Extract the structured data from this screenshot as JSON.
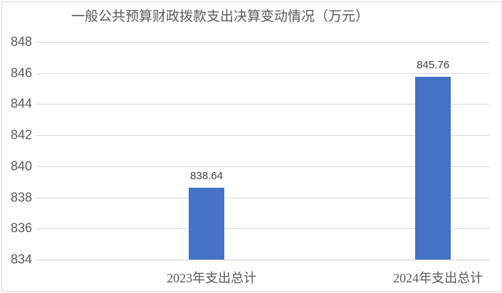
{
  "chart": {
    "title": "一般公共预算财政拨款支出决算变动情况（万元）"
  },
  "chart_data": {
    "type": "bar",
    "title": "一般公共预算财政拨款支出决算变动情况（万元）",
    "categories": [
      "2023年支出总计",
      "2024年支出总计"
    ],
    "values": [
      838.64,
      845.76
    ],
    "value_labels": [
      "838.64",
      "845.76"
    ],
    "xlabel": "",
    "ylabel": "",
    "ylim": [
      834,
      848
    ],
    "y_tick_step": 2,
    "y_ticks": [
      834,
      836,
      838,
      840,
      842,
      844,
      846,
      848
    ],
    "grid": "horizontal",
    "legend": "none",
    "colors": {
      "bar": "#4472C4",
      "gridline": "#D9D9D9",
      "axis_line": "#CFCFCF",
      "title_text": "#595959",
      "tick_text": "#595959",
      "data_label_text": "#404040",
      "border": "#D9D9D9",
      "background": "#FFFFFF"
    },
    "layout": {
      "bar_centers_frac": [
        0.376,
        0.876
      ],
      "bar_width_frac": 0.0786
    }
  }
}
